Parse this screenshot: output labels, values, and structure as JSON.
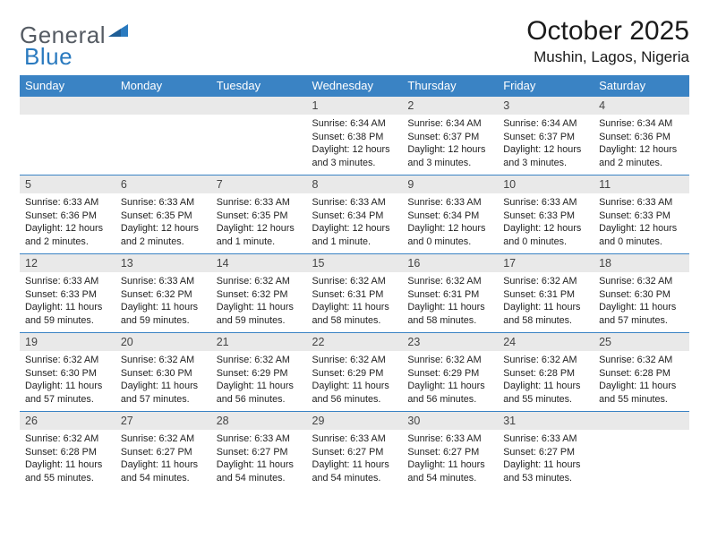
{
  "logo": {
    "text1": "General",
    "text2": "Blue"
  },
  "title": "October 2025",
  "location": "Mushin, Lagos, Nigeria",
  "colors": {
    "header_bg": "#3a83c4",
    "header_text": "#ffffff",
    "daynum_bg": "#e9e9e9",
    "rule": "#3a83c4",
    "logo_gray": "#555b63",
    "logo_blue": "#2a7abf"
  },
  "fonts": {
    "title_size": 30,
    "location_size": 17,
    "dayhead_size": 13,
    "daynum_size": 12.5,
    "body_size": 10.8
  },
  "day_headers": [
    "Sunday",
    "Monday",
    "Tuesday",
    "Wednesday",
    "Thursday",
    "Friday",
    "Saturday"
  ],
  "weeks": [
    [
      null,
      null,
      null,
      {
        "n": "1",
        "sr": "6:34 AM",
        "ss": "6:38 PM",
        "dl": "12 hours and 3 minutes."
      },
      {
        "n": "2",
        "sr": "6:34 AM",
        "ss": "6:37 PM",
        "dl": "12 hours and 3 minutes."
      },
      {
        "n": "3",
        "sr": "6:34 AM",
        "ss": "6:37 PM",
        "dl": "12 hours and 3 minutes."
      },
      {
        "n": "4",
        "sr": "6:34 AM",
        "ss": "6:36 PM",
        "dl": "12 hours and 2 minutes."
      }
    ],
    [
      {
        "n": "5",
        "sr": "6:33 AM",
        "ss": "6:36 PM",
        "dl": "12 hours and 2 minutes."
      },
      {
        "n": "6",
        "sr": "6:33 AM",
        "ss": "6:35 PM",
        "dl": "12 hours and 2 minutes."
      },
      {
        "n": "7",
        "sr": "6:33 AM",
        "ss": "6:35 PM",
        "dl": "12 hours and 1 minute."
      },
      {
        "n": "8",
        "sr": "6:33 AM",
        "ss": "6:34 PM",
        "dl": "12 hours and 1 minute."
      },
      {
        "n": "9",
        "sr": "6:33 AM",
        "ss": "6:34 PM",
        "dl": "12 hours and 0 minutes."
      },
      {
        "n": "10",
        "sr": "6:33 AM",
        "ss": "6:33 PM",
        "dl": "12 hours and 0 minutes."
      },
      {
        "n": "11",
        "sr": "6:33 AM",
        "ss": "6:33 PM",
        "dl": "12 hours and 0 minutes."
      }
    ],
    [
      {
        "n": "12",
        "sr": "6:33 AM",
        "ss": "6:33 PM",
        "dl": "11 hours and 59 minutes."
      },
      {
        "n": "13",
        "sr": "6:33 AM",
        "ss": "6:32 PM",
        "dl": "11 hours and 59 minutes."
      },
      {
        "n": "14",
        "sr": "6:32 AM",
        "ss": "6:32 PM",
        "dl": "11 hours and 59 minutes."
      },
      {
        "n": "15",
        "sr": "6:32 AM",
        "ss": "6:31 PM",
        "dl": "11 hours and 58 minutes."
      },
      {
        "n": "16",
        "sr": "6:32 AM",
        "ss": "6:31 PM",
        "dl": "11 hours and 58 minutes."
      },
      {
        "n": "17",
        "sr": "6:32 AM",
        "ss": "6:31 PM",
        "dl": "11 hours and 58 minutes."
      },
      {
        "n": "18",
        "sr": "6:32 AM",
        "ss": "6:30 PM",
        "dl": "11 hours and 57 minutes."
      }
    ],
    [
      {
        "n": "19",
        "sr": "6:32 AM",
        "ss": "6:30 PM",
        "dl": "11 hours and 57 minutes."
      },
      {
        "n": "20",
        "sr": "6:32 AM",
        "ss": "6:30 PM",
        "dl": "11 hours and 57 minutes."
      },
      {
        "n": "21",
        "sr": "6:32 AM",
        "ss": "6:29 PM",
        "dl": "11 hours and 56 minutes."
      },
      {
        "n": "22",
        "sr": "6:32 AM",
        "ss": "6:29 PM",
        "dl": "11 hours and 56 minutes."
      },
      {
        "n": "23",
        "sr": "6:32 AM",
        "ss": "6:29 PM",
        "dl": "11 hours and 56 minutes."
      },
      {
        "n": "24",
        "sr": "6:32 AM",
        "ss": "6:28 PM",
        "dl": "11 hours and 55 minutes."
      },
      {
        "n": "25",
        "sr": "6:32 AM",
        "ss": "6:28 PM",
        "dl": "11 hours and 55 minutes."
      }
    ],
    [
      {
        "n": "26",
        "sr": "6:32 AM",
        "ss": "6:28 PM",
        "dl": "11 hours and 55 minutes."
      },
      {
        "n": "27",
        "sr": "6:32 AM",
        "ss": "6:27 PM",
        "dl": "11 hours and 54 minutes."
      },
      {
        "n": "28",
        "sr": "6:33 AM",
        "ss": "6:27 PM",
        "dl": "11 hours and 54 minutes."
      },
      {
        "n": "29",
        "sr": "6:33 AM",
        "ss": "6:27 PM",
        "dl": "11 hours and 54 minutes."
      },
      {
        "n": "30",
        "sr": "6:33 AM",
        "ss": "6:27 PM",
        "dl": "11 hours and 54 minutes."
      },
      {
        "n": "31",
        "sr": "6:33 AM",
        "ss": "6:27 PM",
        "dl": "11 hours and 53 minutes."
      },
      null
    ]
  ],
  "labels": {
    "sunrise": "Sunrise:",
    "sunset": "Sunset:",
    "daylight": "Daylight:"
  }
}
